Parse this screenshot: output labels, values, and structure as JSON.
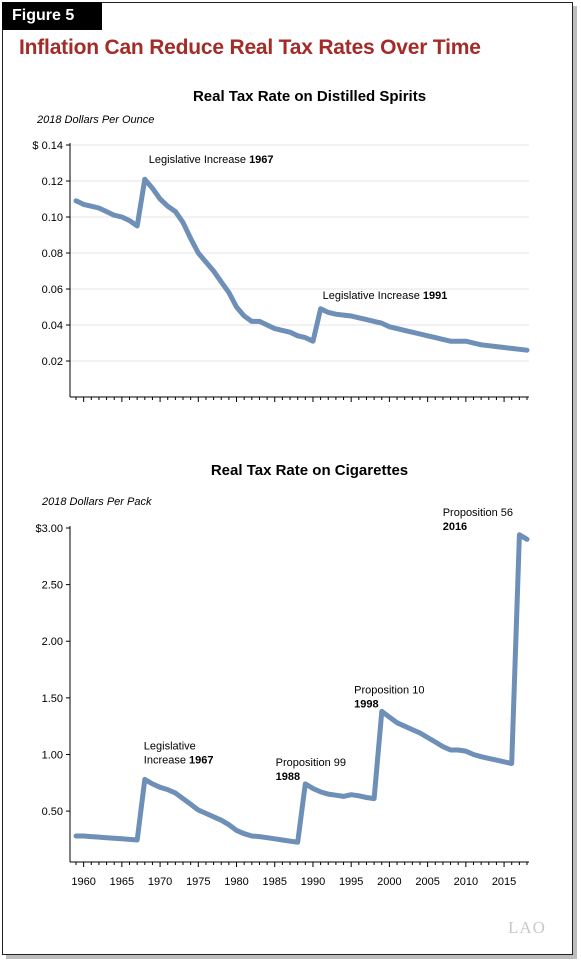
{
  "figure_label": "Figure 5",
  "figure_title": "Inflation Can Reduce Real Tax Rates Over Time",
  "logo_text": "LAO",
  "chart_data": [
    {
      "type": "line",
      "title": "Real Tax Rate on Distilled Spirits",
      "unit_label": "2018 Dollars Per Ounce",
      "xlim": [
        1959,
        2018
      ],
      "ylim": [
        0,
        0.14
      ],
      "x_ticks": [
        1960,
        1965,
        1970,
        1975,
        1980,
        1985,
        1990,
        1995,
        2000,
        2005,
        2010,
        2015
      ],
      "y_ticks": [
        0.02,
        0.04,
        0.06,
        0.08,
        0.1,
        0.12,
        0.14
      ],
      "y_tick_labels": [
        "0.02",
        "0.04",
        "0.06",
        "0.08",
        "0.10",
        "0.12",
        "$ 0.14"
      ],
      "grid": true,
      "x": [
        1959,
        1960,
        1961,
        1962,
        1963,
        1964,
        1965,
        1966,
        1967,
        1968,
        1969,
        1970,
        1971,
        1972,
        1973,
        1974,
        1975,
        1976,
        1977,
        1978,
        1979,
        1980,
        1981,
        1982,
        1983,
        1984,
        1985,
        1986,
        1987,
        1988,
        1989,
        1990,
        1991,
        1992,
        1993,
        1994,
        1995,
        1996,
        1997,
        1998,
        1999,
        2000,
        2001,
        2002,
        2003,
        2004,
        2005,
        2006,
        2007,
        2008,
        2009,
        2010,
        2011,
        2012,
        2013,
        2014,
        2015,
        2016,
        2017,
        2018
      ],
      "values": [
        0.109,
        0.107,
        0.106,
        0.105,
        0.103,
        0.101,
        0.1,
        0.098,
        0.095,
        0.121,
        0.116,
        0.11,
        0.106,
        0.103,
        0.097,
        0.088,
        0.08,
        0.075,
        0.07,
        0.064,
        0.058,
        0.05,
        0.045,
        0.042,
        0.042,
        0.04,
        0.038,
        0.037,
        0.036,
        0.034,
        0.033,
        0.031,
        0.049,
        0.047,
        0.046,
        0.0455,
        0.045,
        0.044,
        0.043,
        0.042,
        0.041,
        0.039,
        0.038,
        0.037,
        0.036,
        0.035,
        0.034,
        0.033,
        0.032,
        0.031,
        0.031,
        0.031,
        0.03,
        0.029,
        0.0285,
        0.028,
        0.0275,
        0.027,
        0.0265,
        0.026
      ],
      "annotations": [
        {
          "text": "Legislative Increase",
          "bold": "1967",
          "x": 1968,
          "y": 0.121
        },
        {
          "text": "Legislative Increase",
          "bold": "1991",
          "x": 1991,
          "y": 0.049
        }
      ]
    },
    {
      "type": "line",
      "title": "Real Tax Rate on Cigarettes",
      "unit_label": "2018 Dollars Per Pack",
      "xlim": [
        1959,
        2018
      ],
      "ylim": [
        0.13,
        3.0
      ],
      "x_ticks": [
        1960,
        1965,
        1970,
        1975,
        1980,
        1985,
        1990,
        1995,
        2000,
        2005,
        2010,
        2015
      ],
      "y_ticks": [
        0.5,
        1.0,
        1.5,
        2.0,
        2.5,
        3.0
      ],
      "y_tick_labels": [
        "0.50",
        "1.00",
        "1.50",
        "2.00",
        "2.50",
        "$3.00"
      ],
      "grid": false,
      "x": [
        1959,
        1960,
        1961,
        1962,
        1963,
        1964,
        1965,
        1966,
        1967,
        1968,
        1969,
        1970,
        1971,
        1972,
        1973,
        1974,
        1975,
        1976,
        1977,
        1978,
        1979,
        1980,
        1981,
        1982,
        1983,
        1984,
        1985,
        1986,
        1987,
        1988,
        1989,
        1990,
        1991,
        1992,
        1993,
        1994,
        1995,
        1996,
        1997,
        1998,
        1999,
        2000,
        2001,
        2002,
        2003,
        2004,
        2005,
        2006,
        2007,
        2008,
        2009,
        2010,
        2011,
        2012,
        2013,
        2014,
        2015,
        2016,
        2017,
        2018
      ],
      "values": [
        0.28,
        0.28,
        0.275,
        0.27,
        0.265,
        0.26,
        0.255,
        0.25,
        0.245,
        0.78,
        0.74,
        0.71,
        0.69,
        0.66,
        0.61,
        0.56,
        0.51,
        0.48,
        0.45,
        0.42,
        0.38,
        0.33,
        0.3,
        0.28,
        0.275,
        0.265,
        0.255,
        0.245,
        0.235,
        0.225,
        0.74,
        0.7,
        0.67,
        0.65,
        0.64,
        0.63,
        0.645,
        0.635,
        0.62,
        0.61,
        1.38,
        1.33,
        1.28,
        1.25,
        1.22,
        1.19,
        1.15,
        1.11,
        1.07,
        1.04,
        1.04,
        1.03,
        1.0,
        0.98,
        0.965,
        0.95,
        0.935,
        0.92,
        2.94,
        2.9
      ],
      "annotations": [
        {
          "text": "Legislative",
          "text2": "Increase",
          "bold": "1967",
          "x": 1968,
          "y": 0.78
        },
        {
          "text": "Proposition 99",
          "bold": "1988",
          "x": 1988,
          "y": 0.74
        },
        {
          "text": "Proposition 10",
          "bold": "1998",
          "x": 1998,
          "y": 1.38
        },
        {
          "text": "Proposition 56",
          "bold": "2016",
          "x": 2016,
          "y": 2.94
        }
      ]
    }
  ]
}
